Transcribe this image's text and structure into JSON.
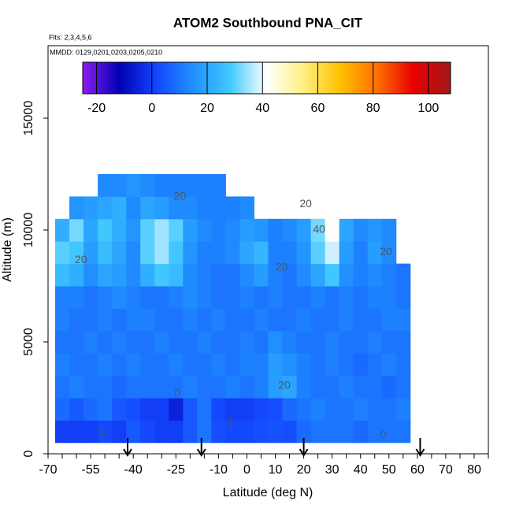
{
  "chart_data": {
    "type": "heatmap",
    "title": "ATOM2 Southbound PNA_CIT",
    "subtitle": "Flts: 2,3,4,5,6",
    "annotation": "MMDD: 0129,0201,0203,0205,0210",
    "xlabel": "Latitude (deg N)",
    "ylabel": "Altitude (m)",
    "xlim": [
      -70,
      85
    ],
    "ylim": [
      0,
      18240
    ],
    "xticks": [
      -70,
      -55,
      -40,
      -25,
      -10,
      0,
      10,
      20,
      30,
      40,
      50,
      60,
      70,
      80
    ],
    "xminor_ticks": [
      -65,
      -60,
      -50,
      -45,
      -35,
      -30,
      -20,
      -15,
      -5,
      5,
      15,
      25,
      35,
      45,
      55,
      65,
      75,
      85
    ],
    "yticks": [
      0,
      5000,
      10000,
      15000
    ],
    "x": [
      -65,
      -60,
      -55,
      -50,
      -45,
      -40,
      -35,
      -30,
      -25,
      -20,
      -15,
      -10,
      -5,
      0,
      5,
      10,
      15,
      20,
      25,
      30,
      35,
      40,
      45,
      50,
      55
    ],
    "y": [
      1000,
      2000,
      3000,
      4000,
      5000,
      6000,
      7000,
      8000,
      9000,
      10000,
      11000,
      12000
    ],
    "values": [
      [
        0,
        0,
        0,
        2,
        0,
        5,
        2,
        0,
        0,
        5,
        10,
        3,
        2,
        2,
        3,
        4,
        3,
        8,
        10,
        10,
        10,
        8,
        10,
        10,
        10
      ],
      [
        8,
        5,
        8,
        10,
        5,
        3,
        0,
        0,
        -5,
        5,
        10,
        2,
        0,
        0,
        2,
        3,
        8,
        10,
        12,
        10,
        10,
        12,
        10,
        10,
        12
      ],
      [
        10,
        12,
        10,
        10,
        8,
        10,
        10,
        10,
        10,
        12,
        10,
        10,
        12,
        10,
        12,
        18,
        20,
        12,
        10,
        10,
        12,
        10,
        10,
        8,
        10
      ],
      [
        12,
        10,
        10,
        12,
        10,
        12,
        10,
        10,
        12,
        10,
        10,
        12,
        10,
        12,
        12,
        18,
        15,
        12,
        10,
        12,
        10,
        8,
        10,
        12,
        10
      ],
      [
        10,
        10,
        12,
        10,
        12,
        10,
        10,
        12,
        10,
        10,
        12,
        10,
        10,
        12,
        10,
        15,
        12,
        10,
        10,
        12,
        10,
        10,
        12,
        10,
        10
      ],
      [
        12,
        10,
        10,
        12,
        10,
        12,
        12,
        10,
        10,
        12,
        10,
        12,
        10,
        10,
        12,
        10,
        10,
        12,
        10,
        10,
        12,
        10,
        10,
        12,
        12
      ],
      [
        12,
        12,
        10,
        12,
        14,
        12,
        10,
        10,
        12,
        14,
        12,
        10,
        10,
        12,
        10,
        12,
        10,
        10,
        12,
        10,
        12,
        10,
        12,
        12,
        10
      ],
      [
        25,
        22,
        15,
        20,
        18,
        14,
        22,
        28,
        25,
        14,
        12,
        10,
        10,
        14,
        18,
        12,
        10,
        14,
        20,
        28,
        15,
        12,
        14,
        12,
        10
      ],
      [
        30,
        28,
        18,
        25,
        20,
        14,
        30,
        35,
        28,
        16,
        12,
        12,
        14,
        20,
        24,
        12,
        12,
        16,
        30,
        38,
        18,
        12,
        18,
        14,
        null
      ],
      [
        22,
        32,
        20,
        28,
        22,
        16,
        30,
        35,
        30,
        18,
        14,
        12,
        14,
        18,
        16,
        12,
        14,
        18,
        32,
        42,
        20,
        14,
        16,
        14,
        null
      ],
      [
        null,
        16,
        18,
        20,
        22,
        14,
        20,
        18,
        14,
        14,
        12,
        12,
        12,
        14,
        null,
        null,
        null,
        null,
        null,
        null,
        null,
        null,
        null,
        null,
        null
      ],
      [
        null,
        null,
        null,
        14,
        14,
        16,
        14,
        12,
        12,
        12,
        12,
        12,
        null,
        null,
        null,
        null,
        null,
        null,
        null,
        null,
        null,
        null,
        null,
        null,
        null
      ]
    ],
    "colorbar": {
      "lim": [
        -25,
        108
      ],
      "ticks": [
        -20,
        0,
        20,
        40,
        60,
        80,
        100
      ],
      "colors": [
        "#8b1cf0",
        "#0000b4",
        "#1446ff",
        "#2090ff",
        "#40c8ff",
        "#ffffff",
        "#fff080",
        "#ffc000",
        "#ff7000",
        "#e80000",
        "#a01818"
      ]
    },
    "contour_labels": [
      {
        "text": "20",
        "x": -23.6,
        "y": 11480
      },
      {
        "text": "20",
        "x": 20.7,
        "y": 11160
      },
      {
        "text": "40",
        "x": 25.4,
        "y": 10000
      },
      {
        "text": "20",
        "x": -58.4,
        "y": 8660
      },
      {
        "text": "20",
        "x": 49,
        "y": 9010
      },
      {
        "text": "20",
        "x": 12.3,
        "y": 8310
      },
      {
        "text": "20",
        "x": 13.2,
        "y": 3030
      },
      {
        "text": "0",
        "x": -24.5,
        "y": 2680
      },
      {
        "text": "0",
        "x": -51,
        "y": 880
      },
      {
        "text": "0",
        "x": -6,
        "y": 1400
      },
      {
        "text": "0",
        "x": 48,
        "y": 810
      }
    ],
    "arrows_x": [
      -42,
      -16,
      20,
      61
    ]
  }
}
